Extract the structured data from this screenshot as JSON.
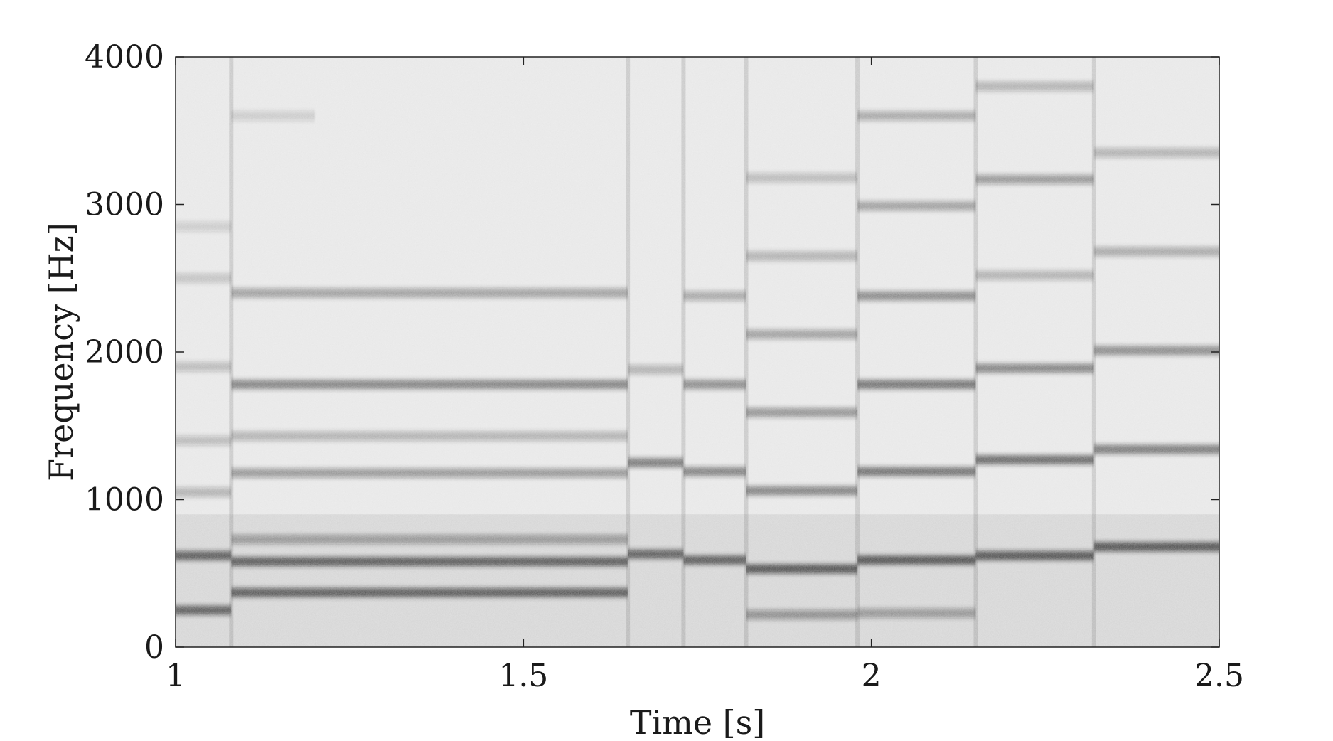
{
  "chart_data": {
    "type": "heatmap",
    "title": "",
    "xlabel": "Time [s]",
    "ylabel": "Frequency [Hz]",
    "xlim": [
      1,
      2.5
    ],
    "ylim": [
      0,
      4000
    ],
    "xticks": [
      1,
      1.5,
      2,
      2.5
    ],
    "xtick_labels": [
      "1",
      "1.5",
      "2",
      "2.5"
    ],
    "yticks": [
      0,
      1000,
      2000,
      3000,
      4000
    ],
    "ytick_labels": [
      "0",
      "1000",
      "2000",
      "3000",
      "4000"
    ],
    "colormap": "gray (darker = higher energy)",
    "background_color": "#e6e6e6",
    "band_color": "#1e1e1e",
    "grid": false,
    "note_onsets_s": [
      1.08,
      1.65,
      1.73,
      1.82,
      1.98,
      2.15,
      2.32
    ],
    "harmonic_bands": [
      {
        "t_start": 1.0,
        "t_end": 1.08,
        "freq_hz": 250,
        "intensity": 0.85
      },
      {
        "t_start": 1.0,
        "t_end": 1.08,
        "freq_hz": 620,
        "intensity": 0.9
      },
      {
        "t_start": 1.0,
        "t_end": 1.08,
        "freq_hz": 1050,
        "intensity": 0.35
      },
      {
        "t_start": 1.0,
        "t_end": 1.08,
        "freq_hz": 1400,
        "intensity": 0.3
      },
      {
        "t_start": 1.0,
        "t_end": 1.08,
        "freq_hz": 1900,
        "intensity": 0.3
      },
      {
        "t_start": 1.0,
        "t_end": 1.08,
        "freq_hz": 2500,
        "intensity": 0.25
      },
      {
        "t_start": 1.0,
        "t_end": 1.08,
        "freq_hz": 2850,
        "intensity": 0.2
      },
      {
        "t_start": 1.08,
        "t_end": 1.65,
        "freq_hz": 370,
        "intensity": 0.9
      },
      {
        "t_start": 1.08,
        "t_end": 1.65,
        "freq_hz": 580,
        "intensity": 0.9
      },
      {
        "t_start": 1.08,
        "t_end": 1.65,
        "freq_hz": 730,
        "intensity": 0.45
      },
      {
        "t_start": 1.08,
        "t_end": 1.65,
        "freq_hz": 1180,
        "intensity": 0.5
      },
      {
        "t_start": 1.08,
        "t_end": 1.65,
        "freq_hz": 1430,
        "intensity": 0.35
      },
      {
        "t_start": 1.08,
        "t_end": 1.65,
        "freq_hz": 1780,
        "intensity": 0.65
      },
      {
        "t_start": 1.08,
        "t_end": 1.65,
        "freq_hz": 2400,
        "intensity": 0.45
      },
      {
        "t_start": 1.08,
        "t_end": 1.2,
        "freq_hz": 3600,
        "intensity": 0.2
      },
      {
        "t_start": 1.65,
        "t_end": 1.73,
        "freq_hz": 630,
        "intensity": 0.85
      },
      {
        "t_start": 1.65,
        "t_end": 1.73,
        "freq_hz": 1250,
        "intensity": 0.7
      },
      {
        "t_start": 1.65,
        "t_end": 1.73,
        "freq_hz": 1880,
        "intensity": 0.35
      },
      {
        "t_start": 1.73,
        "t_end": 1.82,
        "freq_hz": 590,
        "intensity": 0.9
      },
      {
        "t_start": 1.73,
        "t_end": 1.82,
        "freq_hz": 1190,
        "intensity": 0.65
      },
      {
        "t_start": 1.73,
        "t_end": 1.82,
        "freq_hz": 1780,
        "intensity": 0.6
      },
      {
        "t_start": 1.73,
        "t_end": 1.82,
        "freq_hz": 2380,
        "intensity": 0.4
      },
      {
        "t_start": 1.82,
        "t_end": 1.98,
        "freq_hz": 530,
        "intensity": 0.95
      },
      {
        "t_start": 1.82,
        "t_end": 1.98,
        "freq_hz": 220,
        "intensity": 0.5
      },
      {
        "t_start": 1.82,
        "t_end": 1.98,
        "freq_hz": 1060,
        "intensity": 0.65
      },
      {
        "t_start": 1.82,
        "t_end": 1.98,
        "freq_hz": 1590,
        "intensity": 0.55
      },
      {
        "t_start": 1.82,
        "t_end": 1.98,
        "freq_hz": 2120,
        "intensity": 0.45
      },
      {
        "t_start": 1.82,
        "t_end": 1.98,
        "freq_hz": 2650,
        "intensity": 0.35
      },
      {
        "t_start": 1.82,
        "t_end": 1.98,
        "freq_hz": 3180,
        "intensity": 0.3
      },
      {
        "t_start": 1.98,
        "t_end": 2.15,
        "freq_hz": 590,
        "intensity": 0.95
      },
      {
        "t_start": 1.98,
        "t_end": 2.15,
        "freq_hz": 230,
        "intensity": 0.45
      },
      {
        "t_start": 1.98,
        "t_end": 2.15,
        "freq_hz": 1190,
        "intensity": 0.75
      },
      {
        "t_start": 1.98,
        "t_end": 2.15,
        "freq_hz": 1780,
        "intensity": 0.75
      },
      {
        "t_start": 1.98,
        "t_end": 2.15,
        "freq_hz": 2380,
        "intensity": 0.6
      },
      {
        "t_start": 1.98,
        "t_end": 2.15,
        "freq_hz": 2990,
        "intensity": 0.45
      },
      {
        "t_start": 1.98,
        "t_end": 2.15,
        "freq_hz": 3600,
        "intensity": 0.4
      },
      {
        "t_start": 2.15,
        "t_end": 2.32,
        "freq_hz": 620,
        "intensity": 0.95
      },
      {
        "t_start": 2.15,
        "t_end": 2.32,
        "freq_hz": 1270,
        "intensity": 0.8
      },
      {
        "t_start": 2.15,
        "t_end": 2.32,
        "freq_hz": 1890,
        "intensity": 0.65
      },
      {
        "t_start": 2.15,
        "t_end": 2.32,
        "freq_hz": 2520,
        "intensity": 0.35
      },
      {
        "t_start": 2.15,
        "t_end": 2.32,
        "freq_hz": 3170,
        "intensity": 0.5
      },
      {
        "t_start": 2.15,
        "t_end": 2.32,
        "freq_hz": 3800,
        "intensity": 0.35
      },
      {
        "t_start": 2.32,
        "t_end": 2.5,
        "freq_hz": 680,
        "intensity": 0.95
      },
      {
        "t_start": 2.32,
        "t_end": 2.5,
        "freq_hz": 1340,
        "intensity": 0.7
      },
      {
        "t_start": 2.32,
        "t_end": 2.5,
        "freq_hz": 2010,
        "intensity": 0.6
      },
      {
        "t_start": 2.32,
        "t_end": 2.5,
        "freq_hz": 2680,
        "intensity": 0.4
      },
      {
        "t_start": 2.32,
        "t_end": 2.5,
        "freq_hz": 3350,
        "intensity": 0.35
      }
    ]
  }
}
